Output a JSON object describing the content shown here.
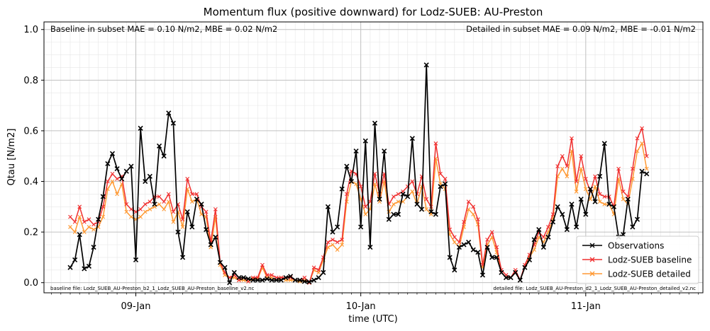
{
  "chart_data": {
    "type": "line",
    "title": "Momentum flux (positive downward) for Lodz-SUEB: AU-Preston",
    "xlabel": "time (UTC)",
    "ylabel": "Qtau [N/m2]",
    "ylim": [
      -0.04,
      1.03
    ],
    "yticks": [
      "0.0",
      "0.2",
      "0.4",
      "0.6",
      "0.8",
      "1.0"
    ],
    "xticks": [
      {
        "label": "09-Jan",
        "hour": 24
      },
      {
        "label": "10-Jan",
        "hour": 48
      },
      {
        "label": "11-Jan",
        "hour": 72
      }
    ],
    "xlim_hours": [
      14.2,
      84.5
    ],
    "time_step_hours": 0.5,
    "first_hour": 17,
    "grid": true,
    "legend_position": "lower right",
    "annotations": {
      "top_left": "Baseline in subset MAE = 0.10 N/m2, MBE = 0.02 N/m2",
      "top_right": "Detailed in subset MAE = 0.09 N/m2, MBE = -0.01 N/m2",
      "bottom_left": "baseline file: Lodz_SUEB_AU-Preston_b2_1_Lodz_SUEB_AU-Preston_baseline_v2.nc",
      "bottom_right": "detailed file: Lodz_SUEB_AU-Preston_d2_1_Lodz_SUEB_AU-Preston_detailed_v2.nc"
    },
    "series": [
      {
        "name": "Observations",
        "color": "#000000",
        "values": [
          0.06,
          0.09,
          0.19,
          0.055,
          0.065,
          0.14,
          0.25,
          0.34,
          0.47,
          0.51,
          0.45,
          0.41,
          0.44,
          0.46,
          0.09,
          0.61,
          0.4,
          0.42,
          0.31,
          0.54,
          0.5,
          0.67,
          0.63,
          0.2,
          0.1,
          0.28,
          0.22,
          0.33,
          0.31,
          0.21,
          0.15,
          0.18,
          0.08,
          0.06,
          0.0,
          0.04,
          0.02,
          0.02,
          0.015,
          0.01,
          0.01,
          0.01,
          0.015,
          0.01,
          0.01,
          0.01,
          0.02,
          0.025,
          0.01,
          0.01,
          0.005,
          0.003,
          0.01,
          0.02,
          0.04,
          0.3,
          0.2,
          0.22,
          0.37,
          0.46,
          0.4,
          0.52,
          0.22,
          0.56,
          0.14,
          0.63,
          0.33,
          0.52,
          0.25,
          0.27,
          0.27,
          0.35,
          0.34,
          0.57,
          0.31,
          0.29,
          0.86,
          0.28,
          0.27,
          0.38,
          0.39,
          0.1,
          0.05,
          0.14,
          0.15,
          0.16,
          0.13,
          0.12,
          0.03,
          0.14,
          0.1,
          0.1,
          0.04,
          0.02,
          0.02,
          0.04,
          0.01,
          0.06,
          0.09,
          0.17,
          0.21,
          0.14,
          0.18,
          0.24,
          0.3,
          0.27,
          0.21,
          0.31,
          0.22,
          0.33,
          0.27,
          0.37,
          0.32,
          0.42,
          0.55,
          0.31,
          0.3,
          0.18,
          0.19,
          0.33,
          0.22,
          0.25,
          0.44,
          0.43
        ]
      },
      {
        "name": "Lodz-SUEB baseline",
        "color": "#f03030",
        "values": [
          0.26,
          0.24,
          0.3,
          0.24,
          0.25,
          0.23,
          0.24,
          0.3,
          0.4,
          0.43,
          0.41,
          0.42,
          0.31,
          0.29,
          0.28,
          0.29,
          0.31,
          0.32,
          0.34,
          0.34,
          0.32,
          0.35,
          0.28,
          0.31,
          0.25,
          0.41,
          0.35,
          0.35,
          0.3,
          0.28,
          0.16,
          0.29,
          0.08,
          0.04,
          0.02,
          0.03,
          0.01,
          0.02,
          0.005,
          0.02,
          0.02,
          0.07,
          0.03,
          0.03,
          0.02,
          0.02,
          0.02,
          0.02,
          0.01,
          0.01,
          0.02,
          0.0,
          0.06,
          0.05,
          0.1,
          0.16,
          0.17,
          0.16,
          0.17,
          0.35,
          0.44,
          0.43,
          0.38,
          0.3,
          0.32,
          0.43,
          0.35,
          0.43,
          0.31,
          0.34,
          0.35,
          0.36,
          0.38,
          0.4,
          0.35,
          0.42,
          0.33,
          0.3,
          0.55,
          0.43,
          0.41,
          0.21,
          0.18,
          0.16,
          0.24,
          0.32,
          0.3,
          0.25,
          0.07,
          0.17,
          0.2,
          0.14,
          0.05,
          0.03,
          0.02,
          0.05,
          0.01,
          0.07,
          0.11,
          0.15,
          0.2,
          0.18,
          0.22,
          0.27,
          0.46,
          0.5,
          0.46,
          0.57,
          0.4,
          0.5,
          0.41,
          0.36,
          0.42,
          0.35,
          0.34,
          0.34,
          0.3,
          0.45,
          0.36,
          0.34,
          0.45,
          0.57,
          0.61,
          0.5
        ]
      },
      {
        "name": "Lodz-SUEB detailed",
        "color": "#ff9933",
        "values": [
          0.22,
          0.2,
          0.26,
          0.2,
          0.22,
          0.21,
          0.22,
          0.26,
          0.37,
          0.4,
          0.35,
          0.39,
          0.28,
          0.26,
          0.25,
          0.26,
          0.28,
          0.29,
          0.3,
          0.31,
          0.29,
          0.32,
          0.24,
          0.28,
          0.22,
          0.37,
          0.32,
          0.33,
          0.27,
          0.26,
          0.14,
          0.26,
          0.07,
          0.03,
          0.02,
          0.02,
          0.01,
          0.01,
          0.005,
          0.015,
          0.015,
          0.06,
          0.02,
          0.02,
          0.01,
          0.02,
          0.01,
          0.01,
          0.01,
          0.005,
          0.01,
          0.0,
          0.05,
          0.04,
          0.09,
          0.14,
          0.15,
          0.13,
          0.15,
          0.32,
          0.4,
          0.39,
          0.33,
          0.27,
          0.29,
          0.39,
          0.32,
          0.4,
          0.28,
          0.31,
          0.32,
          0.32,
          0.34,
          0.36,
          0.31,
          0.38,
          0.29,
          0.27,
          0.49,
          0.39,
          0.37,
          0.19,
          0.16,
          0.14,
          0.22,
          0.29,
          0.27,
          0.23,
          0.06,
          0.15,
          0.18,
          0.12,
          0.04,
          0.02,
          0.02,
          0.04,
          0.01,
          0.06,
          0.1,
          0.13,
          0.18,
          0.16,
          0.2,
          0.25,
          0.42,
          0.45,
          0.42,
          0.52,
          0.36,
          0.45,
          0.37,
          0.33,
          0.38,
          0.32,
          0.31,
          0.31,
          0.27,
          0.41,
          0.33,
          0.31,
          0.41,
          0.52,
          0.55,
          0.45
        ]
      }
    ]
  }
}
